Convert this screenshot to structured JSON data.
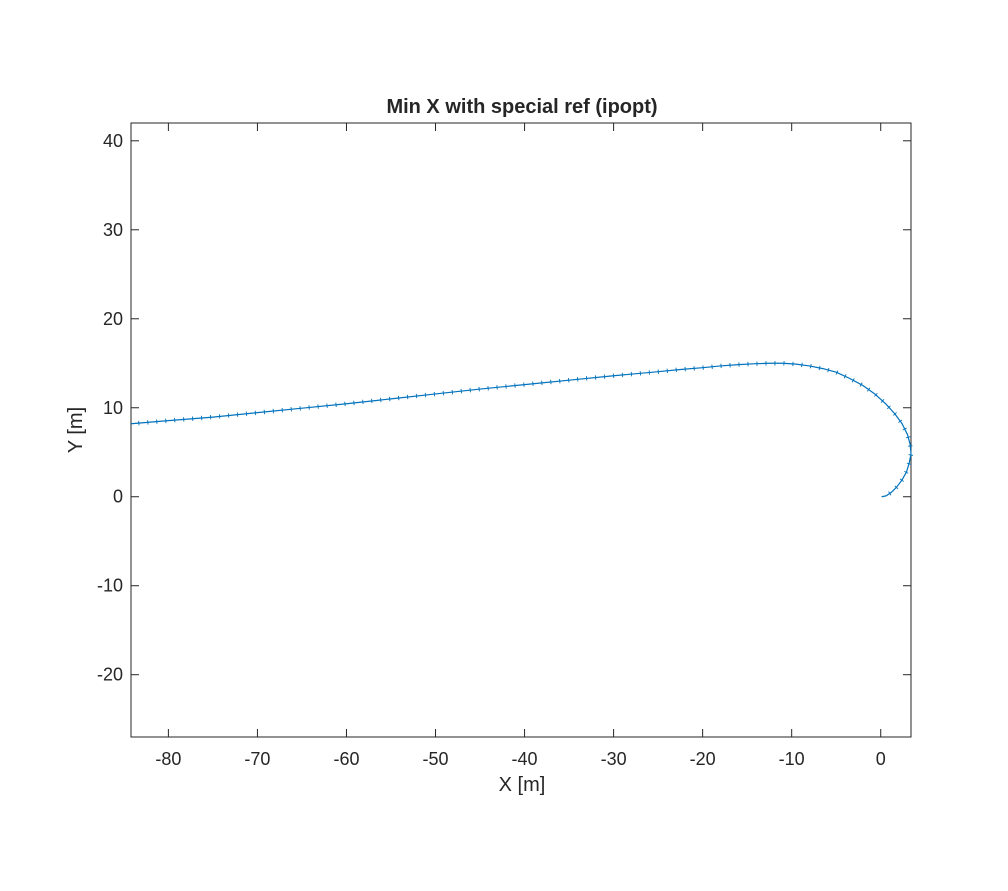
{
  "chart_data": {
    "type": "line",
    "title": "Min X with special ref (ipopt)",
    "xlabel": "X [m]",
    "ylabel": "Y [m]",
    "xlim": [
      -84.2,
      3.4
    ],
    "ylim": [
      -27.0,
      42.0
    ],
    "xticks": [
      -80,
      -70,
      -60,
      -50,
      -40,
      -30,
      -20,
      -10,
      0
    ],
    "xtick_labels": [
      "-80",
      "-70",
      "-60",
      "-50",
      "-40",
      "-30",
      "-20",
      "-10",
      "0"
    ],
    "yticks": [
      -20,
      -10,
      0,
      10,
      20,
      30,
      40
    ],
    "ytick_labels": [
      "-20",
      "-10",
      "0",
      "10",
      "20",
      "30",
      "40"
    ],
    "grid": false,
    "colors": {
      "series": "#0072BD",
      "axes": "#262626"
    },
    "series": [
      {
        "x": [
          0.1,
          0.6,
          1.2,
          1.8,
          2.4,
          2.9,
          3.2,
          3.4,
          3.3,
          3.0,
          2.4,
          1.6,
          0.6,
          -0.6,
          -2.0,
          -3.5,
          -5.0,
          -6.5,
          -8.0,
          -9.5,
          -11.0,
          -12.5,
          -14.0,
          -16.0,
          -18.0,
          -20.0,
          -22.5,
          -25.0,
          -30.0,
          -35.0,
          -40.0,
          -45.0,
          -50.0,
          -55.0,
          -60.0,
          -65.0,
          -70.0,
          -75.0,
          -80.0,
          -84.2
        ],
        "y": [
          0.0,
          0.1,
          0.5,
          1.1,
          1.9,
          2.8,
          3.8,
          4.8,
          5.9,
          7.0,
          8.2,
          9.3,
          10.4,
          11.5,
          12.5,
          13.3,
          14.0,
          14.4,
          14.7,
          14.9,
          15.0,
          15.0,
          14.95,
          14.85,
          14.7,
          14.5,
          14.3,
          14.05,
          13.6,
          13.1,
          12.6,
          12.1,
          11.55,
          11.0,
          10.45,
          9.95,
          9.45,
          8.95,
          8.55,
          8.2
        ]
      }
    ]
  }
}
